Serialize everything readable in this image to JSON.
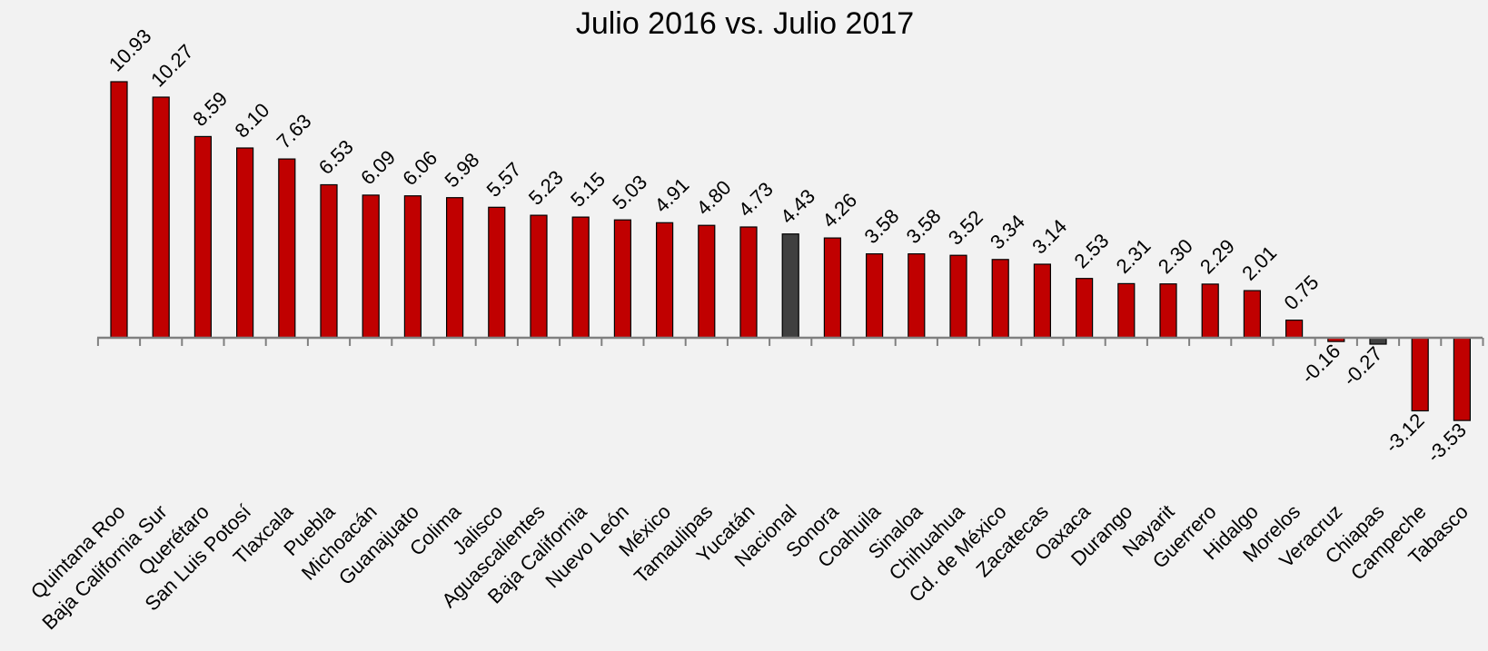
{
  "chart_data": {
    "type": "bar",
    "title_line2": "Julio 2016 vs. Julio 2017",
    "categories": [
      "Quintana Roo",
      "Baja California Sur",
      "Querétaro",
      "San Luis Potosí",
      "Tlaxcala",
      "Puebla",
      "Michoacán",
      "Guanajuato",
      "Colima",
      "Jalisco",
      "Aguascalientes",
      "Baja California",
      "Nuevo León",
      "México",
      "Tamaulipas",
      "Yucatán",
      "Nacional",
      "Sonora",
      "Coahuila",
      "Sinaloa",
      "Chihuahua",
      "Cd. de México",
      "Zacatecas",
      "Oaxaca",
      "Durango",
      "Nayarit",
      "Guerrero",
      "Hidalgo",
      "Morelos",
      "Veracruz",
      "Chiapas",
      "Campeche",
      "Tabasco"
    ],
    "values": [
      10.93,
      10.27,
      8.59,
      8.1,
      7.63,
      6.53,
      6.09,
      6.06,
      5.98,
      5.57,
      5.23,
      5.15,
      5.03,
      4.91,
      4.8,
      4.73,
      4.43,
      4.26,
      3.58,
      3.58,
      3.52,
      3.34,
      3.14,
      2.53,
      2.31,
      2.3,
      2.29,
      2.01,
      0.75,
      -0.16,
      -0.27,
      -3.12,
      -3.53
    ],
    "value_labels": [
      "10.93",
      "10.27",
      "8.59",
      "8.10",
      "7.63",
      "6.53",
      "6.09",
      "6.06",
      "5.98",
      "5.57",
      "5.23",
      "5.15",
      "5.03",
      "4.91",
      "4.80",
      "4.73",
      "4.43",
      "4.26",
      "3.58",
      "3.58",
      "3.52",
      "3.34",
      "3.14",
      "2.53",
      "2.31",
      "2.30",
      "2.29",
      "2.01",
      "0.75",
      "-0.16",
      "-0.27",
      "-3.12",
      "-3.53"
    ],
    "highlight_categories": [
      "Nacional",
      "Chiapas"
    ],
    "colors": {
      "bar": "#c00000",
      "highlight": "#404040",
      "axis": "#808080",
      "background": "#f2f2f2"
    },
    "grid": false,
    "legend": "none"
  }
}
